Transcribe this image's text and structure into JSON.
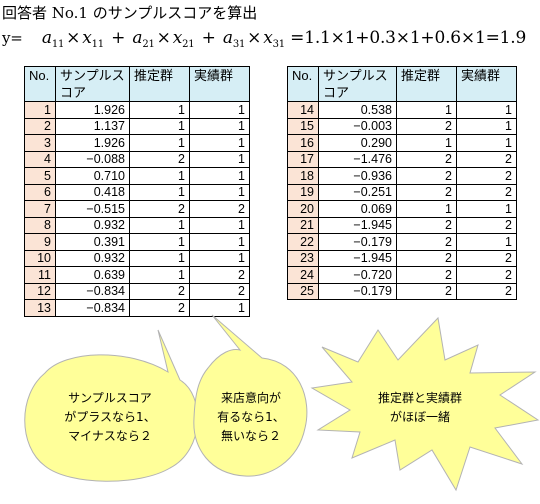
{
  "heading": "回答者 No.1 のサンプルスコアを算出",
  "formula": {
    "label": "y=",
    "terms": [
      {
        "coef": "a",
        "coef_sub": "11",
        "var": "x",
        "var_sub": "11"
      },
      {
        "coef": "a",
        "coef_sub": "21",
        "var": "x",
        "var_sub": "21"
      },
      {
        "coef": "a",
        "coef_sub": "31",
        "var": "x",
        "var_sub": "31"
      }
    ],
    "plus": "+",
    "times": "×",
    "result": "=1.1×1+0.3×1+0.6×1=1.9"
  },
  "table_headers": {
    "no": "No.",
    "score": "サンプルスコア",
    "estimated": "推定群",
    "actual": "実績群"
  },
  "table_left": [
    {
      "no": "1",
      "score": "1.926",
      "estimated": "1",
      "actual": "1"
    },
    {
      "no": "2",
      "score": "1.137",
      "estimated": "1",
      "actual": "1"
    },
    {
      "no": "3",
      "score": "1.926",
      "estimated": "1",
      "actual": "1"
    },
    {
      "no": "4",
      "score": "−0.088",
      "estimated": "2",
      "actual": "1"
    },
    {
      "no": "5",
      "score": "0.710",
      "estimated": "1",
      "actual": "1"
    },
    {
      "no": "6",
      "score": "0.418",
      "estimated": "1",
      "actual": "1"
    },
    {
      "no": "7",
      "score": "−0.515",
      "estimated": "2",
      "actual": "2"
    },
    {
      "no": "8",
      "score": "0.932",
      "estimated": "1",
      "actual": "1"
    },
    {
      "no": "9",
      "score": "0.391",
      "estimated": "1",
      "actual": "1"
    },
    {
      "no": "10",
      "score": "0.932",
      "estimated": "1",
      "actual": "1"
    },
    {
      "no": "11",
      "score": "0.639",
      "estimated": "1",
      "actual": "2"
    },
    {
      "no": "12",
      "score": "−0.834",
      "estimated": "2",
      "actual": "2"
    },
    {
      "no": "13",
      "score": "−0.834",
      "estimated": "2",
      "actual": "1"
    }
  ],
  "table_right": [
    {
      "no": "14",
      "score": "0.538",
      "estimated": "1",
      "actual": "1"
    },
    {
      "no": "15",
      "score": "−0.003",
      "estimated": "2",
      "actual": "1"
    },
    {
      "no": "16",
      "score": "0.290",
      "estimated": "1",
      "actual": "1"
    },
    {
      "no": "17",
      "score": "−1.476",
      "estimated": "2",
      "actual": "2"
    },
    {
      "no": "18",
      "score": "−0.936",
      "estimated": "2",
      "actual": "2"
    },
    {
      "no": "19",
      "score": "−0.251",
      "estimated": "2",
      "actual": "2"
    },
    {
      "no": "20",
      "score": "0.069",
      "estimated": "1",
      "actual": "1"
    },
    {
      "no": "21",
      "score": "−1.945",
      "estimated": "2",
      "actual": "2"
    },
    {
      "no": "22",
      "score": "−0.179",
      "estimated": "2",
      "actual": "1"
    },
    {
      "no": "23",
      "score": "−1.945",
      "estimated": "2",
      "actual": "2"
    },
    {
      "no": "24",
      "score": "−0.720",
      "estimated": "2",
      "actual": "2"
    },
    {
      "no": "25",
      "score": "−0.179",
      "estimated": "2",
      "actual": "2"
    }
  ],
  "callouts": [
    {
      "lines": [
        "サンプルスコア",
        "がプラスなら1、",
        "マイナスなら２"
      ]
    },
    {
      "lines": [
        "来店意向が",
        "有るなら1、",
        "無いなら２"
      ]
    },
    {
      "lines": [
        "推定群と実績群",
        "がほぼ一緒"
      ]
    }
  ],
  "colors": {
    "header_bg": "#d6eef5",
    "no_col_bg": "#fbe4d6",
    "callout_fill": "#ffff99",
    "callout_stroke": "#b3b3b3"
  }
}
